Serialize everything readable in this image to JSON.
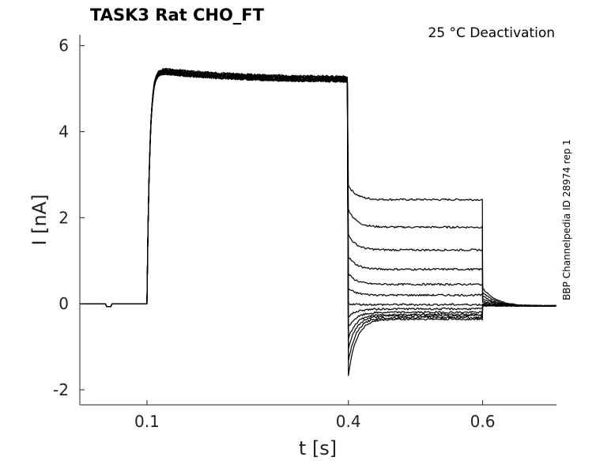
{
  "chart_data": {
    "type": "line",
    "title": "TASK3  Rat  CHO_FT",
    "annotation": "25 °C  Deactivation",
    "side_label": "BBP Channelpedia ID 28974 rep 1",
    "xlabel": "t [s]",
    "ylabel": "I [nA]",
    "xlim": [
      0.0,
      0.71
    ],
    "ylim": [
      -2.35,
      6.25
    ],
    "x_ticks": [
      {
        "value": 0.1,
        "label": "0.1"
      },
      {
        "value": 0.4,
        "label": "0.4"
      },
      {
        "value": 0.6,
        "label": "0.6"
      }
    ],
    "y_ticks": [
      {
        "value": 6,
        "label": "6"
      },
      {
        "value": 4,
        "label": "4"
      },
      {
        "value": 2,
        "label": "2"
      },
      {
        "value": 0,
        "label": "0"
      },
      {
        "value": -2,
        "label": "-2"
      }
    ],
    "grid": false,
    "protocol": {
      "baseline_end": 0.1,
      "pulse_start": 0.1,
      "pulse_end": 0.4,
      "tail_end": 0.6,
      "x_end": 0.71,
      "pulse_peak": 5.45,
      "pulse_end_level": 5.2,
      "tail_min": -1.65,
      "artifact": {
        "start": 0.04,
        "end": 0.048,
        "value": -0.07
      }
    },
    "series": [
      {
        "tail_initial": 2.75,
        "tail_steady": 2.42
      },
      {
        "tail_initial": 2.2,
        "tail_steady": 1.78
      },
      {
        "tail_initial": 1.6,
        "tail_steady": 1.25
      },
      {
        "tail_initial": 1.1,
        "tail_steady": 0.8
      },
      {
        "tail_initial": 0.7,
        "tail_steady": 0.45
      },
      {
        "tail_initial": 0.35,
        "tail_steady": 0.2
      },
      {
        "tail_initial": 0.0,
        "tail_steady": -0.02
      },
      {
        "tail_initial": -0.3,
        "tail_steady": -0.12
      },
      {
        "tail_initial": -0.55,
        "tail_steady": -0.2
      },
      {
        "tail_initial": -0.8,
        "tail_steady": -0.25
      },
      {
        "tail_initial": -1.05,
        "tail_steady": -0.28
      },
      {
        "tail_initial": -1.35,
        "tail_steady": -0.32
      },
      {
        "tail_initial": -1.65,
        "tail_steady": -0.36
      }
    ]
  }
}
